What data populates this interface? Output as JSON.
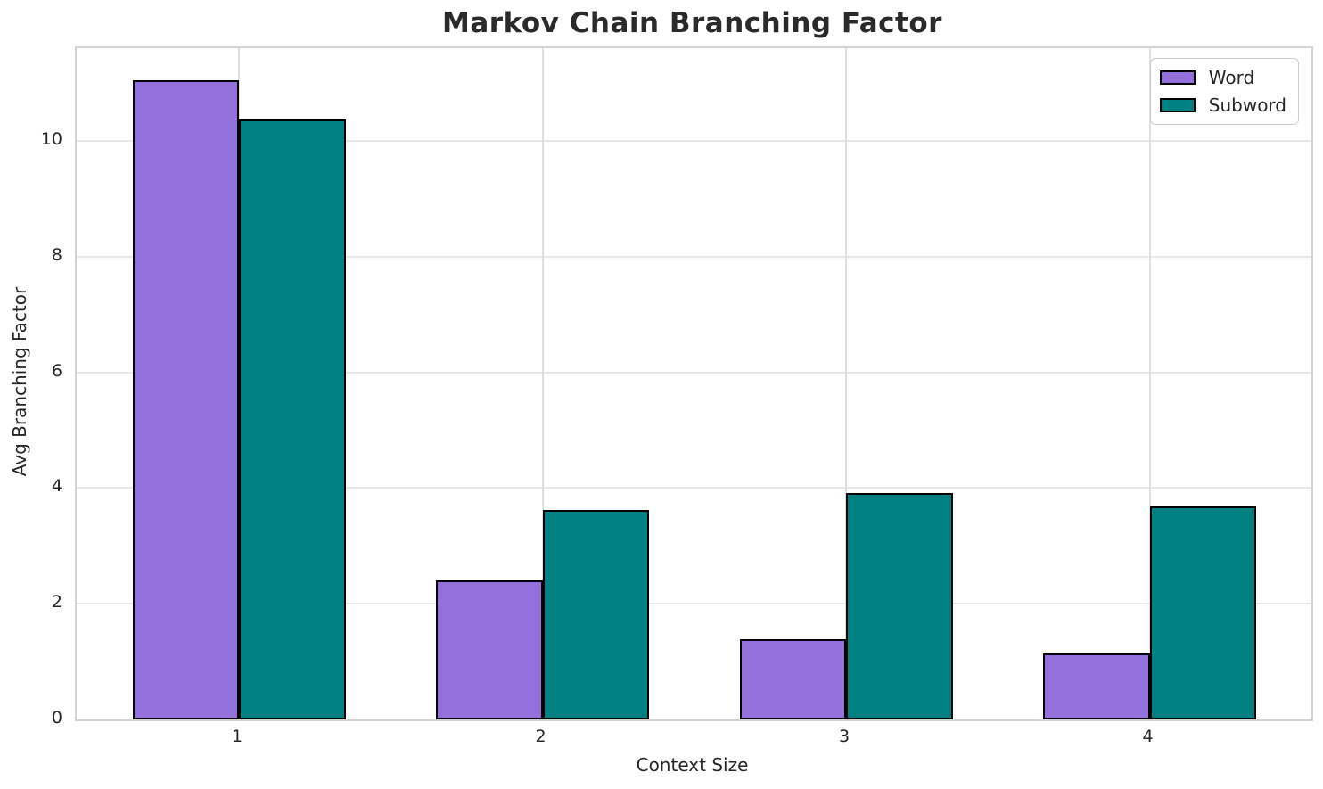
{
  "chart_data": {
    "type": "bar",
    "title": "Markov Chain Branching Factor",
    "xlabel": "Context Size",
    "ylabel": "Avg Branching Factor",
    "categories": [
      "1",
      "2",
      "3",
      "4"
    ],
    "series": [
      {
        "name": "Word",
        "color": "#9370DB",
        "values": [
          11.05,
          2.4,
          1.38,
          1.14
        ]
      },
      {
        "name": "Subword",
        "color": "#008080",
        "values": [
          10.37,
          3.62,
          3.91,
          3.68
        ]
      }
    ],
    "yticks": [
      0,
      2,
      4,
      6,
      8,
      10
    ],
    "ylim": [
      0,
      11.6
    ],
    "grid": true,
    "legend_position": "upper right",
    "bar_edge_color": "#000000",
    "colors": {
      "grid": "#e7e7e7",
      "spine": "#d4d4d4",
      "text": "#262626",
      "title": "#2a2a2a",
      "background": "#ffffff"
    }
  }
}
